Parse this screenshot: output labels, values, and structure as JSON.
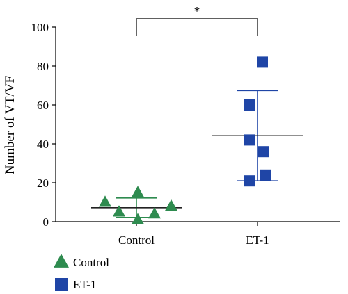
{
  "chart_data": {
    "type": "scatter",
    "title": "",
    "xlabel": "",
    "ylabel": "Number of VT/VF",
    "ylim": [
      0,
      100
    ],
    "yticks": [
      0,
      20,
      40,
      60,
      80,
      100
    ],
    "grid": false,
    "legend_position": "bottom-left",
    "categories": [
      "Control",
      "ET-1"
    ],
    "series": [
      {
        "name": "Control",
        "marker": "triangle",
        "color": "#2e8b4f",
        "values": [
          10,
          5,
          15,
          1,
          4,
          8
        ],
        "mean": 7.2,
        "sd": 5.0
      },
      {
        "name": "ET-1",
        "marker": "square",
        "color": "#1f45a6",
        "values": [
          82,
          60,
          42,
          36,
          24,
          21
        ],
        "mean": 44.2,
        "sd": 23.2
      }
    ],
    "significance": {
      "between": [
        "Control",
        "ET-1"
      ],
      "label": "*"
    }
  }
}
